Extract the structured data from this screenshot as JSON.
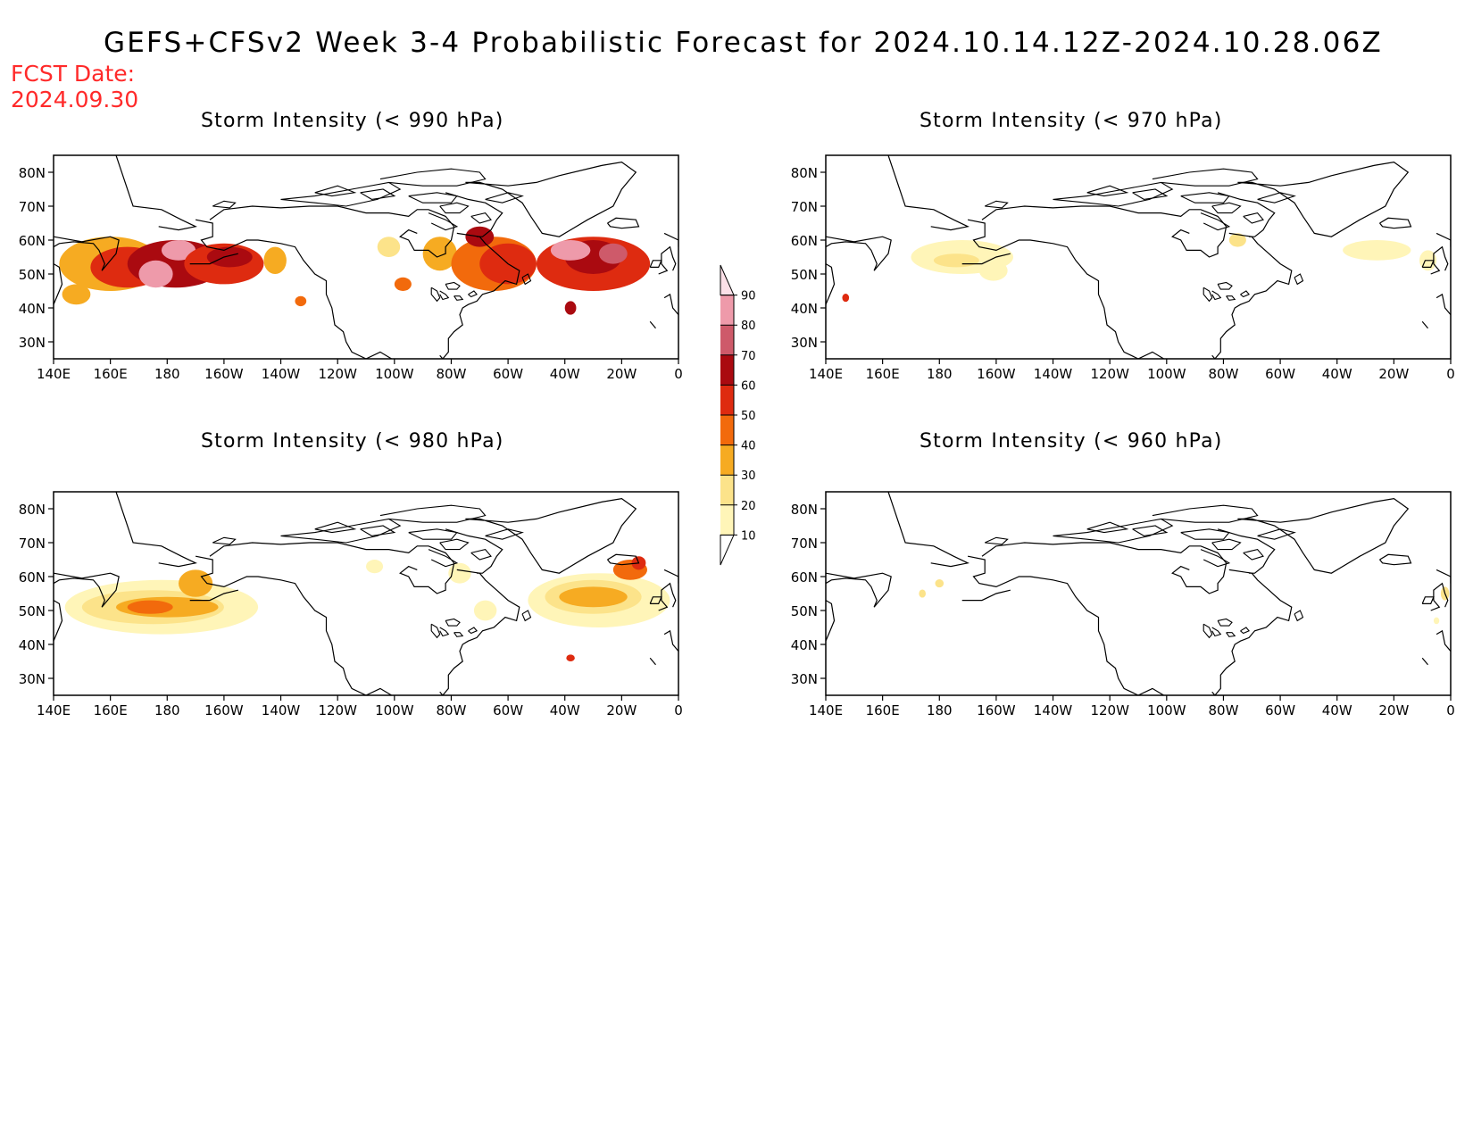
{
  "title": "GEFS+CFSv2 Week 3-4 Probabilistic Forecast for 2024.10.14.12Z-2024.10.28.06Z",
  "fcst_label": "FCST Date:",
  "fcst_date": "2024.09.30",
  "colors": {
    "10": "#fff5b8",
    "20": "#fce38a",
    "30": "#f6ab22",
    "40": "#f26a0c",
    "50": "#de2b10",
    "60": "#aa0a10",
    "70": "#ce5a6a",
    "80": "#ee9aaa",
    "90": "#fce0e8"
  },
  "colorbar": {
    "ticks": [
      "10",
      "20",
      "30",
      "40",
      "50",
      "60",
      "70",
      "80",
      "90"
    ]
  },
  "x_ticks": [
    "140E",
    "160E",
    "180",
    "160W",
    "140W",
    "120W",
    "100W",
    "80W",
    "60W",
    "40W",
    "20W",
    "0"
  ],
  "y_ticks": [
    "80N",
    "70N",
    "60N",
    "50N",
    "40N",
    "30N"
  ],
  "panels": [
    {
      "id": "p990",
      "title": "Storm Intensity (< 990 hPa)",
      "blobs": [
        {
          "lon": 160,
          "lat": 53,
          "rx": 18,
          "ry": 8,
          "lvl": "30"
        },
        {
          "lon": 166,
          "lat": 52,
          "rx": 13,
          "ry": 6,
          "lvl": "50"
        },
        {
          "lon": 183,
          "lat": 53,
          "rx": 17,
          "ry": 7,
          "lvl": "60"
        },
        {
          "lon": 176,
          "lat": 50,
          "rx": 6,
          "ry": 4,
          "lvl": "80"
        },
        {
          "lon": 184,
          "lat": 57,
          "rx": 6,
          "ry": 3,
          "lvl": "80"
        },
        {
          "lon": 200,
          "lat": 53,
          "rx": 14,
          "ry": 6,
          "lvl": "50"
        },
        {
          "lon": 202,
          "lat": 55,
          "rx": 8,
          "ry": 3,
          "lvl": "60"
        },
        {
          "lon": 148,
          "lat": 44,
          "rx": 5,
          "ry": 3,
          "lvl": "30"
        },
        {
          "lon": 218,
          "lat": 54,
          "rx": 4,
          "ry": 4,
          "lvl": "30"
        },
        {
          "lon": 227,
          "lat": 42,
          "rx": 2,
          "ry": 1.5,
          "lvl": "40"
        },
        {
          "lon": 258,
          "lat": 58,
          "rx": 4,
          "ry": 3,
          "lvl": "20"
        },
        {
          "lon": 263,
          "lat": 47,
          "rx": 3,
          "ry": 2,
          "lvl": "40"
        },
        {
          "lon": 276,
          "lat": 56,
          "rx": 6,
          "ry": 5,
          "lvl": "30"
        },
        {
          "lon": 295,
          "lat": 53,
          "rx": 15,
          "ry": 8,
          "lvl": "40"
        },
        {
          "lon": 300,
          "lat": 53,
          "rx": 10,
          "ry": 6,
          "lvl": "50"
        },
        {
          "lon": 290,
          "lat": 61,
          "rx": 5,
          "ry": 3,
          "lvl": "60"
        },
        {
          "lon": 330,
          "lat": 53,
          "rx": 20,
          "ry": 8,
          "lvl": "50"
        },
        {
          "lon": 330,
          "lat": 55,
          "rx": 10,
          "ry": 5,
          "lvl": "60"
        },
        {
          "lon": 322,
          "lat": 57,
          "rx": 7,
          "ry": 3,
          "lvl": "80"
        },
        {
          "lon": 337,
          "lat": 56,
          "rx": 5,
          "ry": 3,
          "lvl": "70"
        },
        {
          "lon": 322,
          "lat": 40,
          "rx": 2,
          "ry": 2,
          "lvl": "60"
        }
      ]
    },
    {
      "id": "p970",
      "title": "Storm Intensity (< 970 hPa)",
      "blobs": [
        {
          "lon": 188,
          "lat": 55,
          "rx": 18,
          "ry": 5,
          "lvl": "10"
        },
        {
          "lon": 186,
          "lat": 54,
          "rx": 8,
          "ry": 2,
          "lvl": "20"
        },
        {
          "lon": 199,
          "lat": 51,
          "rx": 5,
          "ry": 3,
          "lvl": "10"
        },
        {
          "lon": 147,
          "lat": 43,
          "rx": 1.2,
          "ry": 1.2,
          "lvl": "50"
        },
        {
          "lon": 285,
          "lat": 60,
          "rx": 3,
          "ry": 2,
          "lvl": "20"
        },
        {
          "lon": 334,
          "lat": 57,
          "rx": 12,
          "ry": 3,
          "lvl": "10"
        },
        {
          "lon": 352,
          "lat": 54,
          "rx": 3,
          "ry": 3,
          "lvl": "10"
        }
      ]
    },
    {
      "id": "p980",
      "title": "Storm Intensity (< 980 hPa)",
      "blobs": [
        {
          "lon": 178,
          "lat": 51,
          "rx": 34,
          "ry": 8,
          "lvl": "10"
        },
        {
          "lon": 175,
          "lat": 51,
          "rx": 25,
          "ry": 5,
          "lvl": "20"
        },
        {
          "lon": 180,
          "lat": 51,
          "rx": 18,
          "ry": 3,
          "lvl": "30"
        },
        {
          "lon": 174,
          "lat": 51,
          "rx": 8,
          "ry": 2,
          "lvl": "40"
        },
        {
          "lon": 190,
          "lat": 58,
          "rx": 6,
          "ry": 4,
          "lvl": "30"
        },
        {
          "lon": 253,
          "lat": 63,
          "rx": 3,
          "ry": 2,
          "lvl": "10"
        },
        {
          "lon": 283,
          "lat": 61,
          "rx": 4,
          "ry": 3,
          "lvl": "10"
        },
        {
          "lon": 292,
          "lat": 50,
          "rx": 4,
          "ry": 3,
          "lvl": "10"
        },
        {
          "lon": 332,
          "lat": 53,
          "rx": 25,
          "ry": 8,
          "lvl": "10"
        },
        {
          "lon": 330,
          "lat": 54,
          "rx": 17,
          "ry": 5,
          "lvl": "20"
        },
        {
          "lon": 330,
          "lat": 54,
          "rx": 12,
          "ry": 3,
          "lvl": "30"
        },
        {
          "lon": 343,
          "lat": 62,
          "rx": 6,
          "ry": 3,
          "lvl": "40"
        },
        {
          "lon": 346,
          "lat": 64,
          "rx": 2.5,
          "ry": 2,
          "lvl": "50"
        },
        {
          "lon": 322,
          "lat": 36,
          "rx": 1.5,
          "ry": 1,
          "lvl": "50"
        }
      ]
    },
    {
      "id": "p960",
      "title": "Storm Intensity (< 960 hPa)",
      "blobs": [
        {
          "lon": 180,
          "lat": 58,
          "rx": 1.5,
          "ry": 1.2,
          "lvl": "20"
        },
        {
          "lon": 174,
          "lat": 55,
          "rx": 1.2,
          "ry": 1.2,
          "lvl": "20"
        },
        {
          "lon": 358,
          "lat": 55,
          "rx": 1.5,
          "ry": 2,
          "lvl": "20"
        },
        {
          "lon": 355,
          "lat": 47,
          "rx": 1,
          "ry": 1,
          "lvl": "10"
        }
      ]
    }
  ]
}
